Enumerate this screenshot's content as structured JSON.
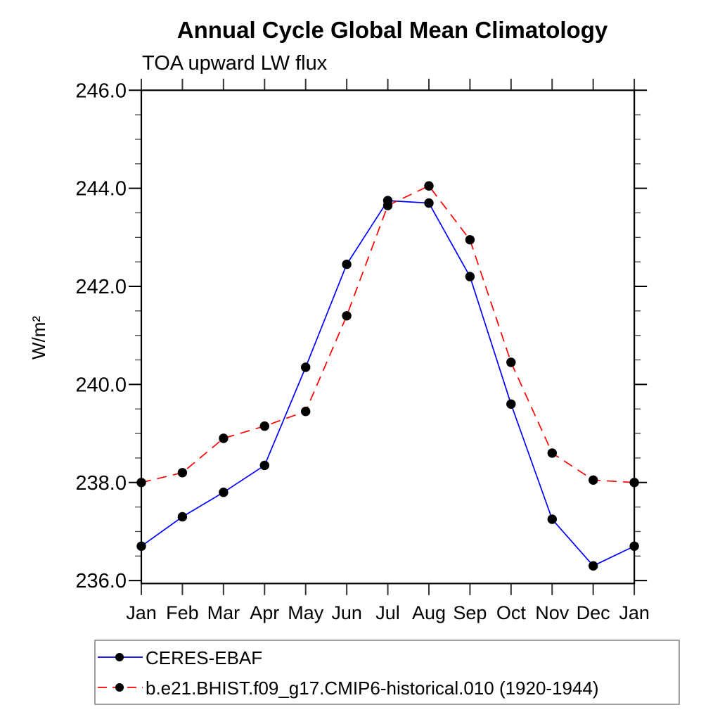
{
  "chart_data": {
    "type": "line",
    "title": "Annual Cycle Global Mean Climatology",
    "subtitle": "TOA upward LW flux",
    "ylabel": "W/m²",
    "xlabel": "",
    "categories": [
      "Jan",
      "Feb",
      "Mar",
      "Apr",
      "May",
      "Jun",
      "Jul",
      "Aug",
      "Sep",
      "Oct",
      "Nov",
      "Dec",
      "Jan"
    ],
    "y_ticks": [
      236.0,
      238.0,
      240.0,
      242.0,
      244.0,
      246.0
    ],
    "y_tick_labels": [
      "236.0",
      "238.0",
      "240.0",
      "242.0",
      "244.0",
      "246.0"
    ],
    "y_minor_step": 0.5,
    "ylim": [
      235.94,
      246.0
    ],
    "grid": false,
    "legend_position": "bottom-left",
    "series": [
      {
        "name": "CERES-EBAF",
        "color": "#0000ff",
        "style": "solid",
        "marker": "circle",
        "marker_color": "#000000",
        "values": [
          236.7,
          237.3,
          237.8,
          238.35,
          240.35,
          242.45,
          243.75,
          243.7,
          242.2,
          239.6,
          237.25,
          236.3,
          236.7
        ]
      },
      {
        "name": "b.e21.BHIST.f09_g17.CMIP6-historical.010 (1920-1944)",
        "color": "#ff0000",
        "style": "dashed",
        "marker": "circle",
        "marker_color": "#000000",
        "values": [
          238.0,
          238.2,
          238.9,
          239.15,
          239.45,
          241.4,
          243.65,
          244.05,
          242.95,
          240.45,
          238.6,
          238.05,
          238.0
        ]
      }
    ]
  }
}
